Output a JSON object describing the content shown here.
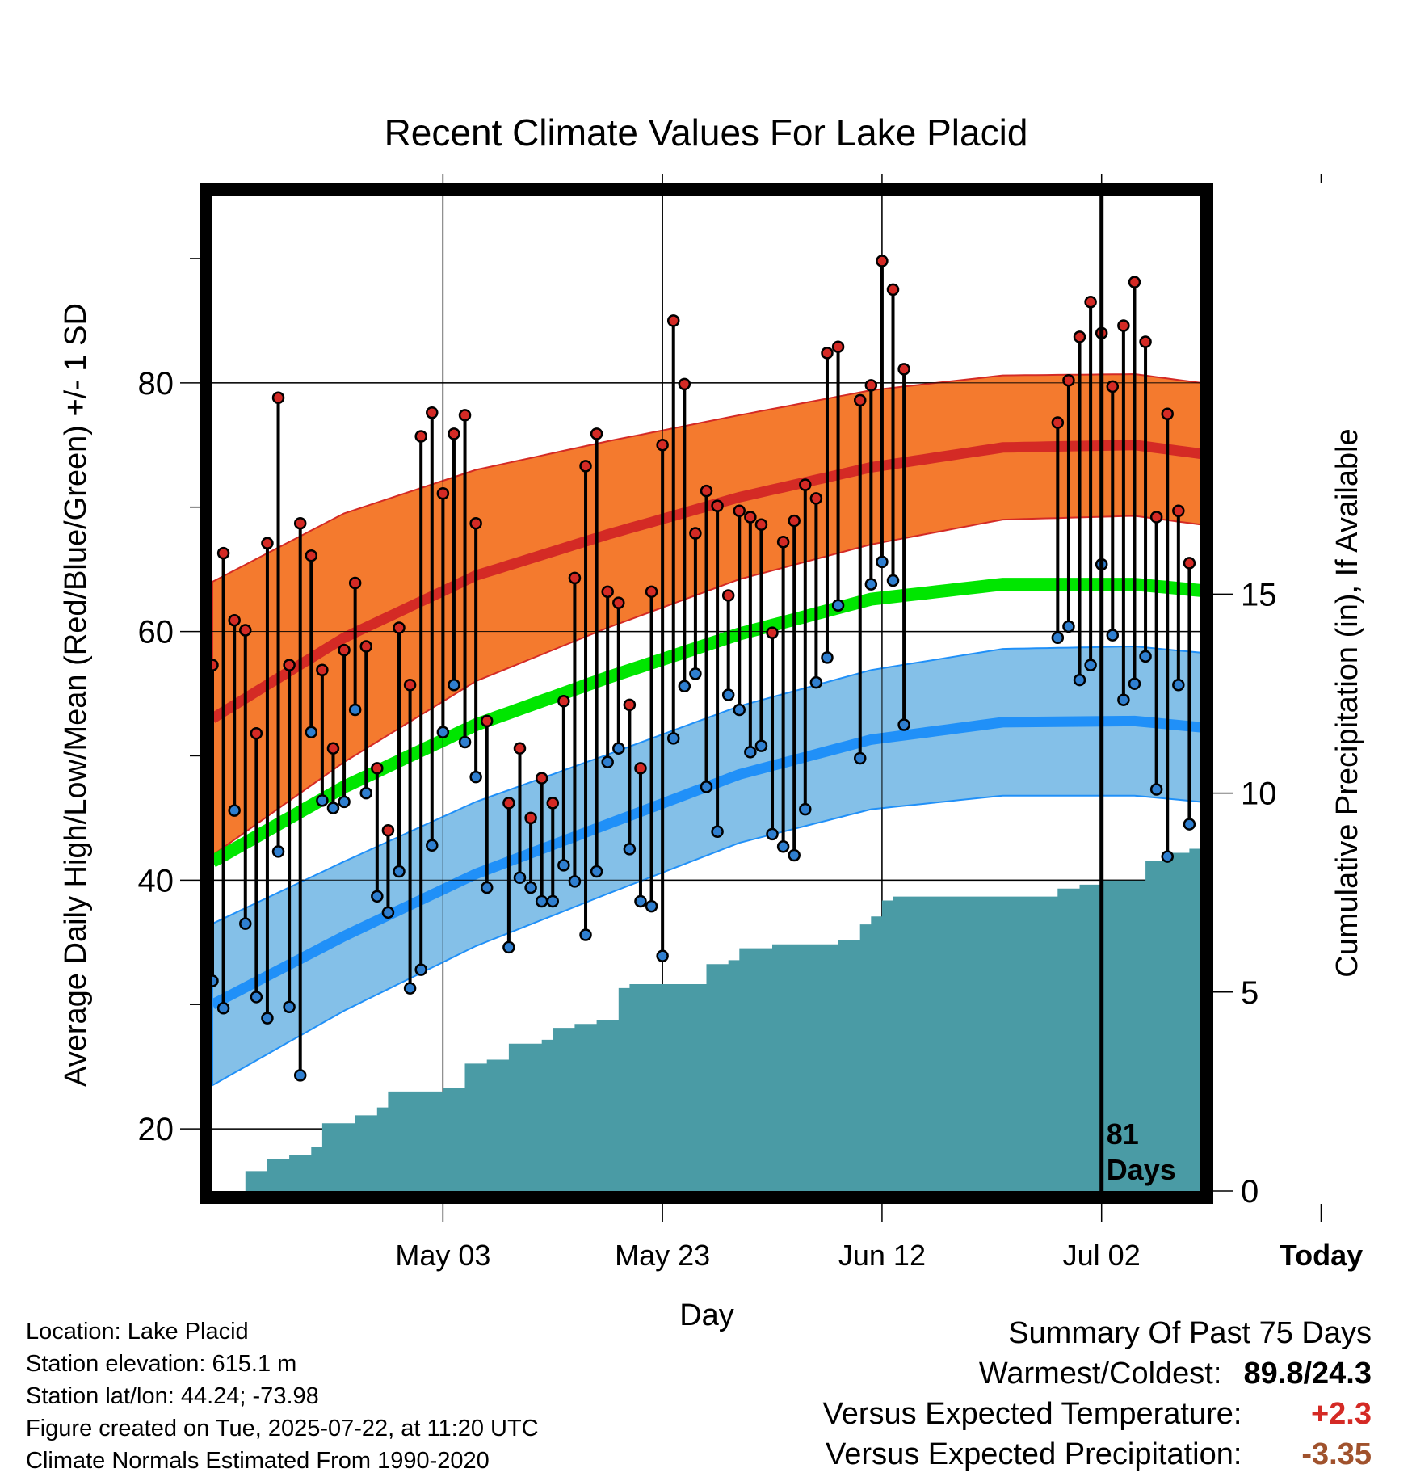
{
  "chart_data": {
    "type": "line",
    "title": "Recent Climate Values For Lake Placid",
    "xlabel": "Day",
    "ylabel": "Average Daily High/Low/Mean (Red/Blue/Green) +/- 1 SD",
    "y2label": "Cumulative Precipitation (in), If Available",
    "xticks": [
      "May 03",
      "May 23",
      "Jun 12",
      "Jul 02",
      "Today"
    ],
    "yticks": [
      "20",
      "40",
      "60",
      "80"
    ],
    "y2ticks": [
      "0",
      "5",
      "10",
      "15"
    ],
    "x_range_days": [
      -81,
      9
    ],
    "ylim": [
      15,
      95
    ],
    "y2lim": [
      0,
      25
    ],
    "today_label": "81 Days",
    "grid": true,
    "colors": {
      "high_band": "#f47a2e",
      "high_line": "#d42a25",
      "low_band": "#84c0e8",
      "low_line": "#2090f8",
      "mean_line": "#00e600",
      "precip": "#4a9ba5",
      "high_marker": "#d42a25",
      "low_marker": "#2f7fd0"
    },
    "normals": {
      "x_days": [
        -81,
        -69,
        -57,
        -45,
        -33,
        -21,
        -9,
        3,
        9
      ],
      "high_mean": [
        53.0,
        59.5,
        64.5,
        67.8,
        70.8,
        73.2,
        74.8,
        75.0,
        74.3
      ],
      "high_sd": [
        11.0,
        10.0,
        8.5,
        7.5,
        6.6,
        6.2,
        5.8,
        5.7,
        5.7
      ],
      "low_mean": [
        30.0,
        35.5,
        40.5,
        44.5,
        48.5,
        51.3,
        52.7,
        52.8,
        52.3
      ],
      "low_sd": [
        6.5,
        6.0,
        5.8,
        5.6,
        5.5,
        5.6,
        5.9,
        6.0,
        6.0
      ],
      "mean": [
        41.5,
        47.5,
        52.5,
        56.3,
        59.8,
        62.6,
        63.8,
        63.8,
        63.3
      ]
    },
    "daily": [
      {
        "d": -81,
        "hi": 57.3,
        "lo": 31.9
      },
      {
        "d": -80,
        "hi": 66.3,
        "lo": 29.7
      },
      {
        "d": -79,
        "hi": 60.9,
        "lo": 45.6
      },
      {
        "d": -78,
        "hi": 60.1,
        "lo": 36.5
      },
      {
        "d": -77,
        "hi": 51.8,
        "lo": 30.6
      },
      {
        "d": -76,
        "hi": 67.1,
        "lo": 28.9
      },
      {
        "d": -75,
        "hi": 78.8,
        "lo": 42.3
      },
      {
        "d": -74,
        "hi": 57.3,
        "lo": 29.8
      },
      {
        "d": -73,
        "hi": 68.7,
        "lo": 24.3
      },
      {
        "d": -72,
        "hi": 66.1,
        "lo": 51.9
      },
      {
        "d": -71,
        "hi": 56.9,
        "lo": 46.4
      },
      {
        "d": -70,
        "hi": 50.6,
        "lo": 45.8
      },
      {
        "d": -69,
        "hi": 58.5,
        "lo": 46.3
      },
      {
        "d": -68,
        "hi": 63.9,
        "lo": 53.7
      },
      {
        "d": -67,
        "hi": 58.8,
        "lo": 47.0
      },
      {
        "d": -66,
        "hi": 49.0,
        "lo": 38.7
      },
      {
        "d": -65,
        "hi": 44.0,
        "lo": 37.4
      },
      {
        "d": -64,
        "hi": 60.3,
        "lo": 40.7
      },
      {
        "d": -63,
        "hi": 55.7,
        "lo": 31.3
      },
      {
        "d": -62,
        "hi": 75.7,
        "lo": 32.8
      },
      {
        "d": -61,
        "hi": 77.6,
        "lo": 42.8
      },
      {
        "d": -60,
        "hi": 71.1,
        "lo": 51.9
      },
      {
        "d": -59,
        "hi": 75.9,
        "lo": 55.7
      },
      {
        "d": -58,
        "hi": 77.4,
        "lo": 51.1
      },
      {
        "d": -57,
        "hi": 68.7,
        "lo": 48.3
      },
      {
        "d": -56,
        "hi": 52.8,
        "lo": 39.4
      },
      {
        "d": -54,
        "hi": 46.2,
        "lo": 34.6
      },
      {
        "d": -53,
        "hi": 50.6,
        "lo": 40.2
      },
      {
        "d": -52,
        "hi": 45.0,
        "lo": 39.4
      },
      {
        "d": -51,
        "hi": 48.2,
        "lo": 38.3
      },
      {
        "d": -50,
        "hi": 46.2,
        "lo": 38.3
      },
      {
        "d": -49,
        "hi": 54.4,
        "lo": 41.2
      },
      {
        "d": -48,
        "hi": 64.3,
        "lo": 39.9
      },
      {
        "d": -47,
        "hi": 73.3,
        "lo": 35.6
      },
      {
        "d": -46,
        "hi": 75.9,
        "lo": 40.7
      },
      {
        "d": -45,
        "hi": 63.2,
        "lo": 49.5
      },
      {
        "d": -44,
        "hi": 62.3,
        "lo": 50.6
      },
      {
        "d": -43,
        "hi": 54.1,
        "lo": 42.5
      },
      {
        "d": -42,
        "hi": 49.0,
        "lo": 38.3
      },
      {
        "d": -41,
        "hi": 63.2,
        "lo": 37.9
      },
      {
        "d": -40,
        "hi": 75.0,
        "lo": 33.9
      },
      {
        "d": -39,
        "hi": 85.0,
        "lo": 51.4
      },
      {
        "d": -38,
        "hi": 79.9,
        "lo": 55.6
      },
      {
        "d": -37,
        "hi": 67.9,
        "lo": 56.6
      },
      {
        "d": -36,
        "hi": 71.3,
        "lo": 47.5
      },
      {
        "d": -35,
        "hi": 70.1,
        "lo": 43.9
      },
      {
        "d": -34,
        "hi": 62.9,
        "lo": 54.9
      },
      {
        "d": -33,
        "hi": 69.7,
        "lo": 53.7
      },
      {
        "d": -32,
        "hi": 69.2,
        "lo": 50.3
      },
      {
        "d": -31,
        "hi": 68.6,
        "lo": 50.8
      },
      {
        "d": -30,
        "hi": 59.9,
        "lo": 43.7
      },
      {
        "d": -29,
        "hi": 67.2,
        "lo": 42.7
      },
      {
        "d": -28,
        "hi": 68.9,
        "lo": 42.0
      },
      {
        "d": -27,
        "hi": 71.8,
        "lo": 45.7
      },
      {
        "d": -26,
        "hi": 70.7,
        "lo": 55.9
      },
      {
        "d": -25,
        "hi": 82.4,
        "lo": 57.9
      },
      {
        "d": -24,
        "hi": 82.9,
        "lo": 62.1
      },
      {
        "d": -22,
        "hi": 78.6,
        "lo": 49.8
      },
      {
        "d": -21,
        "hi": 79.8,
        "lo": 63.8
      },
      {
        "d": -20,
        "hi": 89.8,
        "lo": 65.6
      },
      {
        "d": -19,
        "hi": 87.5,
        "lo": 64.1
      },
      {
        "d": -18,
        "hi": 81.1,
        "lo": 52.5
      },
      {
        "d": -4,
        "hi": 76.8,
        "lo": 59.5
      },
      {
        "d": -3,
        "hi": 80.2,
        "lo": 60.4
      },
      {
        "d": -2,
        "hi": 83.7,
        "lo": 56.1
      },
      {
        "d": -1,
        "hi": 86.5,
        "lo": 57.3
      },
      {
        "d": 0,
        "hi": 84.0,
        "lo": 65.4
      },
      {
        "d": 1,
        "hi": 79.7,
        "lo": 59.7
      },
      {
        "d": 2,
        "hi": 84.6,
        "lo": 54.5
      },
      {
        "d": 3,
        "hi": 88.1,
        "lo": 55.8
      },
      {
        "d": 4,
        "hi": 83.3,
        "lo": 58.0
      },
      {
        "d": 5,
        "hi": 69.2,
        "lo": 47.3
      },
      {
        "d": 6,
        "hi": 77.5,
        "lo": 41.9
      },
      {
        "d": 7,
        "hi": 69.7,
        "lo": 55.7
      },
      {
        "d": 8,
        "hi": 65.5,
        "lo": 44.5
      }
    ],
    "precip_cumulative": {
      "x_days": [
        -78,
        -76,
        -74,
        -72,
        -71,
        -68,
        -66,
        -65,
        -60,
        -58,
        -56,
        -54,
        -51,
        -50,
        -48,
        -46,
        -44,
        -43,
        -38,
        -36,
        -34,
        -33,
        -30,
        -24,
        -22,
        -21,
        -20,
        -19,
        -17,
        -15,
        -11,
        -4,
        -2,
        0,
        2,
        4,
        6,
        8,
        9
      ],
      "values": [
        0.5,
        0.8,
        0.9,
        1.1,
        1.7,
        1.9,
        2.1,
        2.5,
        2.6,
        3.2,
        3.3,
        3.7,
        3.8,
        4.1,
        4.2,
        4.3,
        5.1,
        5.2,
        5.2,
        5.7,
        5.8,
        6.1,
        6.2,
        6.3,
        6.7,
        6.9,
        7.3,
        7.4,
        7.4,
        7.4,
        7.4,
        7.6,
        7.7,
        7.8,
        7.8,
        8.3,
        8.5,
        8.6,
        8.6
      ]
    }
  },
  "info": {
    "location": "Location: Lake Placid",
    "elevation": "Station elevation: 615.1 m",
    "latlon": "Station lat/lon: 44.24; -73.98",
    "created": "Figure created on Tue, 2025-07-22, at 11:20 UTC",
    "normals": "Climate Normals Estimated From 1990-2020"
  },
  "summary": {
    "title": "Summary Of Past 75 Days",
    "warmest_label": "Warmest/Coldest:",
    "warmest_value": "89.8/24.3",
    "temp_label": "Versus Expected Temperature:",
    "temp_value": "+2.3",
    "temp_color": "#d42a25",
    "precip_label": "Versus Expected Precipitation:",
    "precip_value": "-3.35",
    "precip_color": "#a0522d"
  }
}
